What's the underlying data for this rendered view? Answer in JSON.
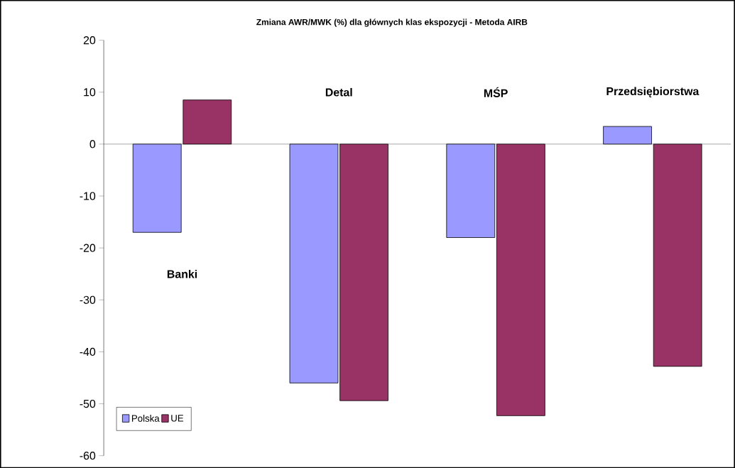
{
  "chart_data": {
    "type": "bar",
    "title": "Zmiana AWR/MWK (%) dla głównych klas ekspozycji - Metoda AIRB",
    "categories": [
      "Banki",
      "Detal",
      "MŚP",
      "Przedsiębiorstwa"
    ],
    "series": [
      {
        "name": "Polska",
        "color": "#9999ff",
        "values": [
          -17.0,
          -46.0,
          -18.0,
          3.4
        ]
      },
      {
        "name": "UE",
        "color": "#993366",
        "values": [
          8.5,
          -49.4,
          -52.3,
          -42.8
        ]
      }
    ],
    "ylim": [
      -60,
      20
    ],
    "yticks": [
      -60,
      -50,
      -40,
      -30,
      -20,
      -10,
      0,
      10,
      20
    ],
    "legend": "bottom left"
  }
}
